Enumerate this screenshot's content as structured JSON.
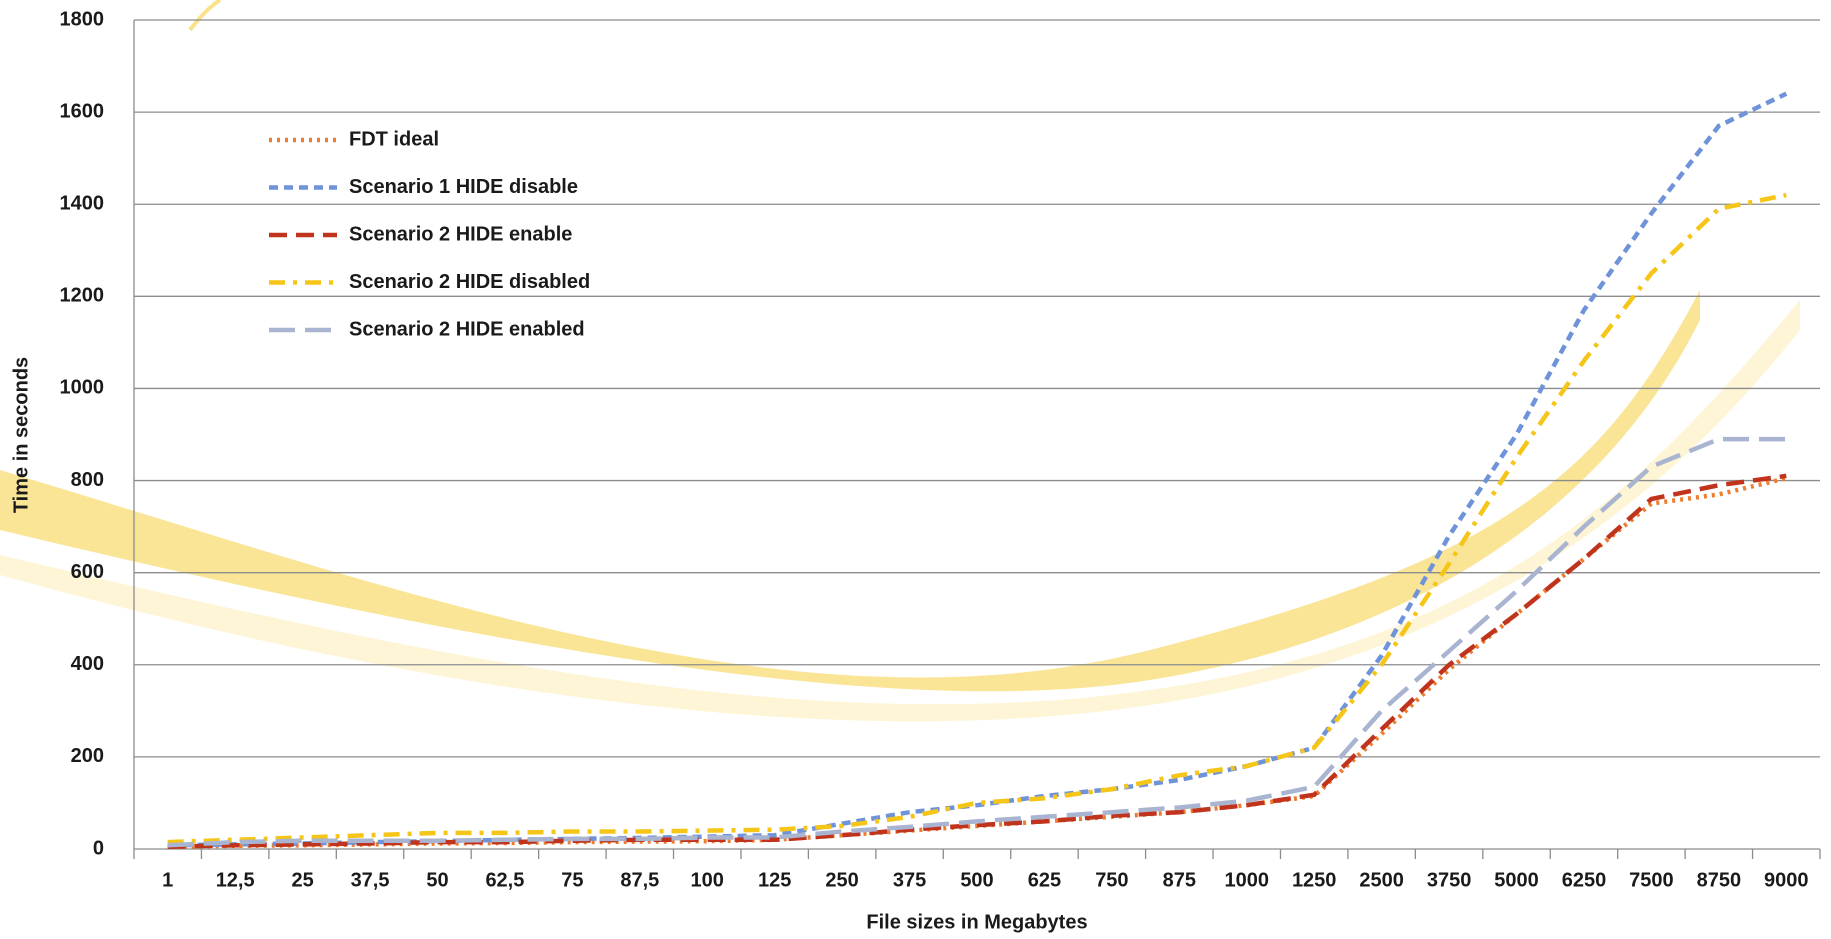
{
  "chart_data": {
    "type": "line",
    "x_label": "File sizes in Megabytes",
    "y_label": "Time in seconds",
    "categories": [
      "1",
      "12,5",
      "25",
      "37,5",
      "50",
      "62,5",
      "75",
      "87,5",
      "100",
      "125",
      "250",
      "375",
      "500",
      "625",
      "750",
      "875",
      "1000",
      "1250",
      "2500",
      "3750",
      "5000",
      "6250",
      "7500",
      "8750",
      "9000"
    ],
    "ylim": [
      0,
      1800
    ],
    "yticks": [
      0,
      200,
      400,
      600,
      800,
      1000,
      1200,
      1400,
      1600,
      1800
    ],
    "grid": true,
    "legend": "upper left",
    "series": [
      {
        "name": "FDT ideal",
        "color": "#ed7d31",
        "dash": "3,5",
        "values": [
          5,
          7,
          8,
          10,
          12,
          13,
          15,
          16,
          17,
          20,
          30,
          40,
          50,
          60,
          70,
          80,
          95,
          115,
          250,
          390,
          510,
          630,
          750,
          770,
          805
        ]
      },
      {
        "name": "Scenario 1 HIDE disable",
        "color": "#6f93d9",
        "dash": "9,6",
        "values": [
          8,
          10,
          12,
          15,
          17,
          20,
          22,
          24,
          27,
          30,
          55,
          80,
          95,
          115,
          130,
          150,
          180,
          220,
          420,
          680,
          900,
          1170,
          1380,
          1570,
          1640
        ]
      },
      {
        "name": "Scenario 2 HIDE enable",
        "color": "#c0341d",
        "dash": "18,9",
        "values": [
          5,
          8,
          10,
          12,
          15,
          15,
          18,
          20,
          20,
          20,
          30,
          42,
          52,
          60,
          72,
          80,
          95,
          118,
          260,
          400,
          510,
          630,
          760,
          790,
          810
        ]
      },
      {
        "name": "Scenario 2 HIDE disabled",
        "color": "#f5c518",
        "dash": "16,8,4,8",
        "values": [
          15,
          20,
          25,
          30,
          35,
          35,
          38,
          38,
          40,
          42,
          50,
          70,
          100,
          110,
          130,
          160,
          180,
          220,
          400,
          620,
          850,
          1060,
          1250,
          1390,
          1420
        ]
      },
      {
        "name": "Scenario 2 HIDE enabled",
        "color": "#a8b4d0",
        "dash": "26,10",
        "values": [
          8,
          15,
          18,
          18,
          18,
          20,
          22,
          22,
          25,
          25,
          38,
          48,
          60,
          70,
          80,
          90,
          105,
          135,
          300,
          430,
          560,
          700,
          830,
          890,
          890
        ]
      }
    ]
  }
}
